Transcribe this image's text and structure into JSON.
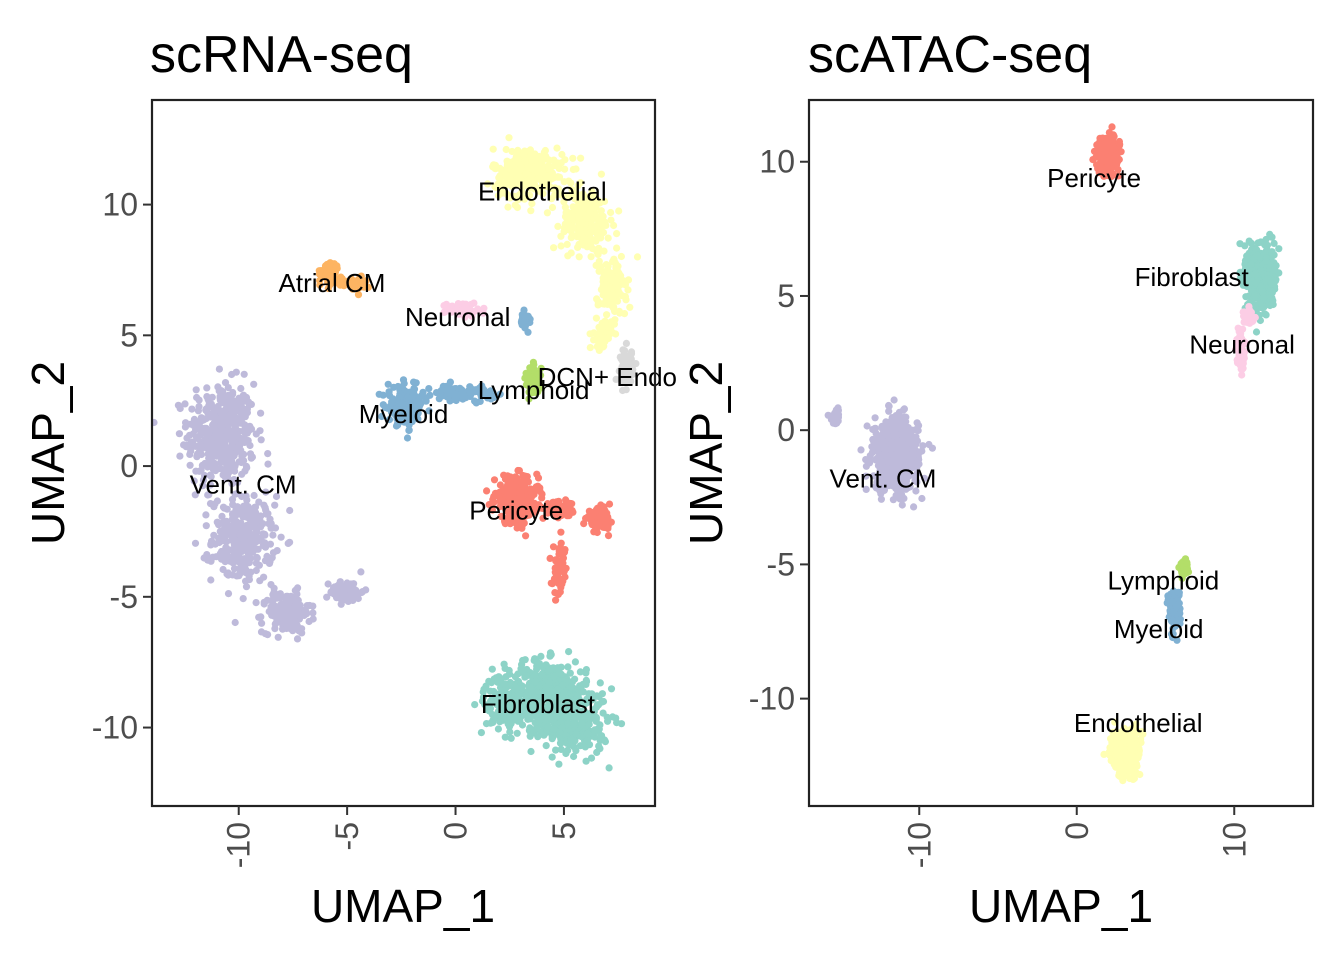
{
  "chart_data": [
    {
      "type": "scatter",
      "title": "scRNA-seq",
      "xlabel": "UMAP_1",
      "ylabel": "UMAP_2",
      "xlim": [
        -14,
        9.2
      ],
      "ylim": [
        -13,
        14
      ],
      "xticks": [
        -10,
        -5,
        0,
        5
      ],
      "yticks": [
        -10,
        -5,
        0,
        5,
        10
      ],
      "xtick_labels": [
        "-10",
        "-5",
        "0",
        "5"
      ],
      "ytick_labels": [
        "-10",
        "-5",
        "0",
        "5",
        "10"
      ],
      "grid": false,
      "clusters": [
        {
          "name": "Vent. CM",
          "color": "#bebada",
          "label_pos": [
            -9.8,
            -0.7
          ],
          "n": 950,
          "blobs": [
            {
              "cx": -10.8,
              "cy": 1.2,
              "sx": 1.4,
              "sy": 1.8,
              "w": 0.45
            },
            {
              "cx": -9.8,
              "cy": -2.8,
              "sx": 1.3,
              "sy": 1.5,
              "w": 0.3
            },
            {
              "cx": -7.8,
              "cy": -5.6,
              "sx": 1.0,
              "sy": 0.7,
              "w": 0.17
            },
            {
              "cx": -5.0,
              "cy": -4.8,
              "sx": 0.7,
              "sy": 0.4,
              "w": 0.08
            }
          ]
        },
        {
          "name": "Fibroblast",
          "color": "#8dd3c7",
          "label_pos": [
            3.8,
            -9.1
          ],
          "n": 850,
          "blobs": [
            {
              "cx": 4.2,
              "cy": -8.8,
              "sx": 1.7,
              "sy": 1.2,
              "w": 0.55
            },
            {
              "cx": 5.6,
              "cy": -9.8,
              "sx": 1.3,
              "sy": 1.1,
              "w": 0.3
            },
            {
              "cx": 2.2,
              "cy": -9.0,
              "sx": 0.8,
              "sy": 0.9,
              "w": 0.15
            }
          ]
        },
        {
          "name": "Endothelial",
          "color": "#ffffb3",
          "label_pos": [
            4.0,
            10.5
          ],
          "n": 700,
          "blobs": [
            {
              "cx": 3.4,
              "cy": 11.2,
              "sx": 1.5,
              "sy": 0.9,
              "w": 0.4
            },
            {
              "cx": 6.0,
              "cy": 9.4,
              "sx": 1.0,
              "sy": 1.1,
              "w": 0.32
            },
            {
              "cx": 7.2,
              "cy": 6.8,
              "sx": 0.6,
              "sy": 1.0,
              "w": 0.2
            },
            {
              "cx": 6.8,
              "cy": 5.0,
              "sx": 0.35,
              "sy": 0.5,
              "w": 0.08
            }
          ]
        },
        {
          "name": "Pericyte",
          "color": "#fb8072",
          "label_pos": [
            2.8,
            -1.7
          ],
          "n": 520,
          "blobs": [
            {
              "cx": 2.8,
              "cy": -1.3,
              "sx": 0.9,
              "sy": 0.8,
              "w": 0.6
            },
            {
              "cx": 6.6,
              "cy": -2.0,
              "sx": 0.5,
              "sy": 0.35,
              "w": 0.2
            },
            {
              "cx": 4.8,
              "cy": -1.7,
              "sx": 0.7,
              "sy": 0.3,
              "w": 0.1
            },
            {
              "cx": 4.8,
              "cy": -4.0,
              "sx": 0.3,
              "sy": 0.9,
              "w": 0.1
            }
          ]
        },
        {
          "name": "Myeloid",
          "color": "#80b1d3",
          "label_pos": [
            -2.4,
            2.0
          ],
          "n": 320,
          "blobs": [
            {
              "cx": -2.3,
              "cy": 2.3,
              "sx": 0.75,
              "sy": 0.65,
              "w": 0.6
            },
            {
              "cx": 0.4,
              "cy": 2.8,
              "sx": 1.3,
              "sy": 0.25,
              "w": 0.3
            },
            {
              "cx": 3.2,
              "cy": 5.6,
              "sx": 0.25,
              "sy": 0.25,
              "w": 0.1
            }
          ]
        },
        {
          "name": "Atrial CM",
          "color": "#fdb462",
          "label_pos": [
            -5.7,
            7.0
          ],
          "n": 130,
          "blobs": [
            {
              "cx": -5.8,
              "cy": 7.4,
              "sx": 0.35,
              "sy": 0.35,
              "w": 0.6
            },
            {
              "cx": -4.7,
              "cy": 7.0,
              "sx": 0.6,
              "sy": 0.25,
              "w": 0.4
            }
          ]
        },
        {
          "name": "Neuronal",
          "color": "#fccde5",
          "label_pos": [
            0.1,
            5.7
          ],
          "n": 60,
          "blobs": [
            {
              "cx": 0.3,
              "cy": 6.0,
              "sx": 0.7,
              "sy": 0.25,
              "w": 1.0
            }
          ]
        },
        {
          "name": "Lymphoid",
          "color": "#b3de69",
          "label_pos": [
            3.6,
            2.9
          ],
          "n": 90,
          "blobs": [
            {
              "cx": 3.6,
              "cy": 3.3,
              "sx": 0.3,
              "sy": 0.5,
              "w": 1.0
            }
          ]
        },
        {
          "name": "DCN+ Endo",
          "color": "#d9d9d9",
          "label_pos": [
            7.0,
            3.4
          ],
          "n": 80,
          "blobs": [
            {
              "cx": 7.9,
              "cy": 3.8,
              "sx": 0.25,
              "sy": 0.6,
              "w": 1.0
            }
          ]
        }
      ]
    },
    {
      "type": "scatter",
      "title": "scATAC-seq",
      "xlabel": "UMAP_1",
      "ylabel": "UMAP_2",
      "xlim": [
        -17,
        15
      ],
      "ylim": [
        -14,
        12.3
      ],
      "xticks": [
        -10,
        0,
        10
      ],
      "yticks": [
        -10,
        -5,
        0,
        5,
        10
      ],
      "xtick_labels": [
        "-10",
        "0",
        "10"
      ],
      "ytick_labels": [
        "-10",
        "-5",
        "0",
        "5",
        "10"
      ],
      "grid": false,
      "clusters": [
        {
          "name": "Vent. CM",
          "color": "#bebada",
          "label_pos": [
            -12.3,
            -1.8
          ],
          "n": 650,
          "blobs": [
            {
              "cx": -11.5,
              "cy": -0.9,
              "sx": 1.3,
              "sy": 1.2,
              "w": 0.96
            },
            {
              "cx": -15.3,
              "cy": 0.5,
              "sx": 0.3,
              "sy": 0.3,
              "w": 0.04
            }
          ]
        },
        {
          "name": "Pericyte",
          "color": "#fb8072",
          "label_pos": [
            1.1,
            9.4
          ],
          "n": 300,
          "blobs": [
            {
              "cx": 2.0,
              "cy": 10.3,
              "sx": 0.6,
              "sy": 0.55,
              "w": 1.0
            }
          ]
        },
        {
          "name": "Fibroblast",
          "color": "#8dd3c7",
          "label_pos": [
            7.3,
            5.7
          ],
          "n": 550,
          "blobs": [
            {
              "cx": 11.7,
              "cy": 5.7,
              "sx": 0.75,
              "sy": 1.05,
              "w": 1.0
            }
          ]
        },
        {
          "name": "Neuronal",
          "color": "#fccde5",
          "label_pos": [
            10.5,
            3.2
          ],
          "n": 150,
          "blobs": [
            {
              "cx": 10.4,
              "cy": 3.0,
              "sx": 0.2,
              "sy": 0.6,
              "w": 0.7
            },
            {
              "cx": 10.9,
              "cy": 4.2,
              "sx": 0.3,
              "sy": 0.25,
              "w": 0.3
            }
          ]
        },
        {
          "name": "Lymphoid",
          "color": "#b3de69",
          "label_pos": [
            5.5,
            -5.6
          ],
          "n": 60,
          "blobs": [
            {
              "cx": 6.8,
              "cy": -5.1,
              "sx": 0.25,
              "sy": 0.25,
              "w": 1.0
            }
          ]
        },
        {
          "name": "Myeloid",
          "color": "#80b1d3",
          "label_pos": [
            5.2,
            -7.4
          ],
          "n": 180,
          "blobs": [
            {
              "cx": 6.2,
              "cy": -6.6,
              "sx": 0.3,
              "sy": 0.65,
              "w": 1.0
            }
          ]
        },
        {
          "name": "Endothelial",
          "color": "#ffffb3",
          "label_pos": [
            3.9,
            -10.9
          ],
          "n": 360,
          "blobs": [
            {
              "cx": 3.1,
              "cy": -12.0,
              "sx": 0.85,
              "sy": 0.8,
              "w": 1.0
            }
          ]
        }
      ]
    }
  ]
}
